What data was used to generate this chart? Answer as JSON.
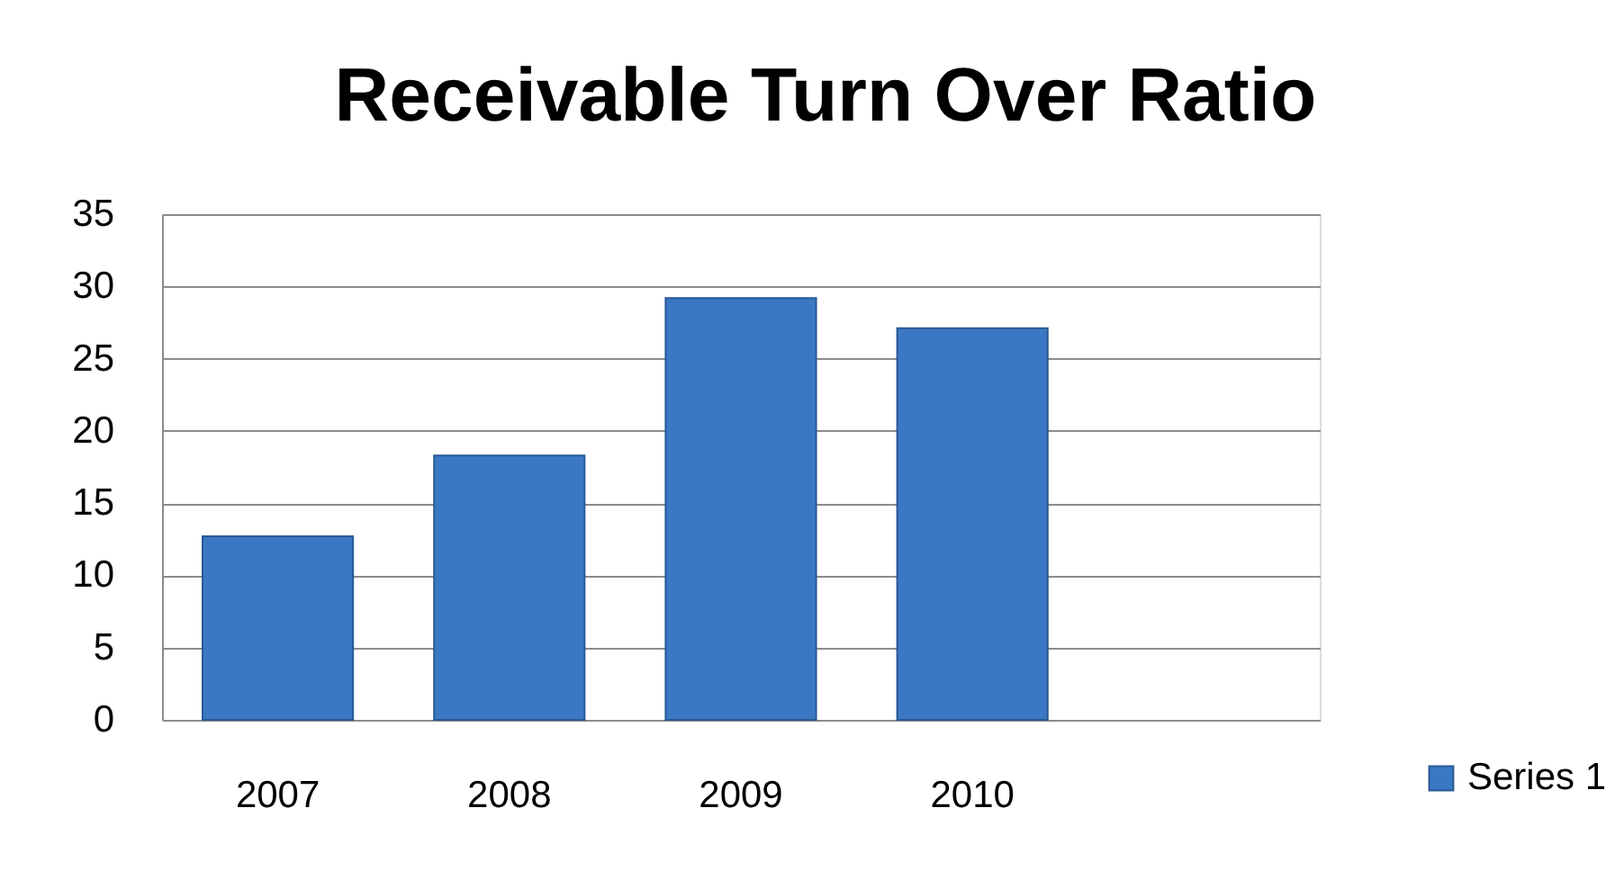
{
  "chart_data": {
    "type": "bar",
    "title": "Receivable  Turn Over Ratio",
    "categories": [
      "2007",
      "2008",
      "2009",
      "2010",
      null
    ],
    "series": [
      {
        "name": "Series 1",
        "color": "#3b78c4",
        "values": [
          12.7,
          18.3,
          29.2,
          27.1,
          null
        ]
      }
    ],
    "ylim": [
      0,
      35
    ],
    "yticks": [
      0,
      5,
      10,
      15,
      20,
      25,
      30,
      35
    ],
    "grid": "y",
    "legend": "right"
  }
}
